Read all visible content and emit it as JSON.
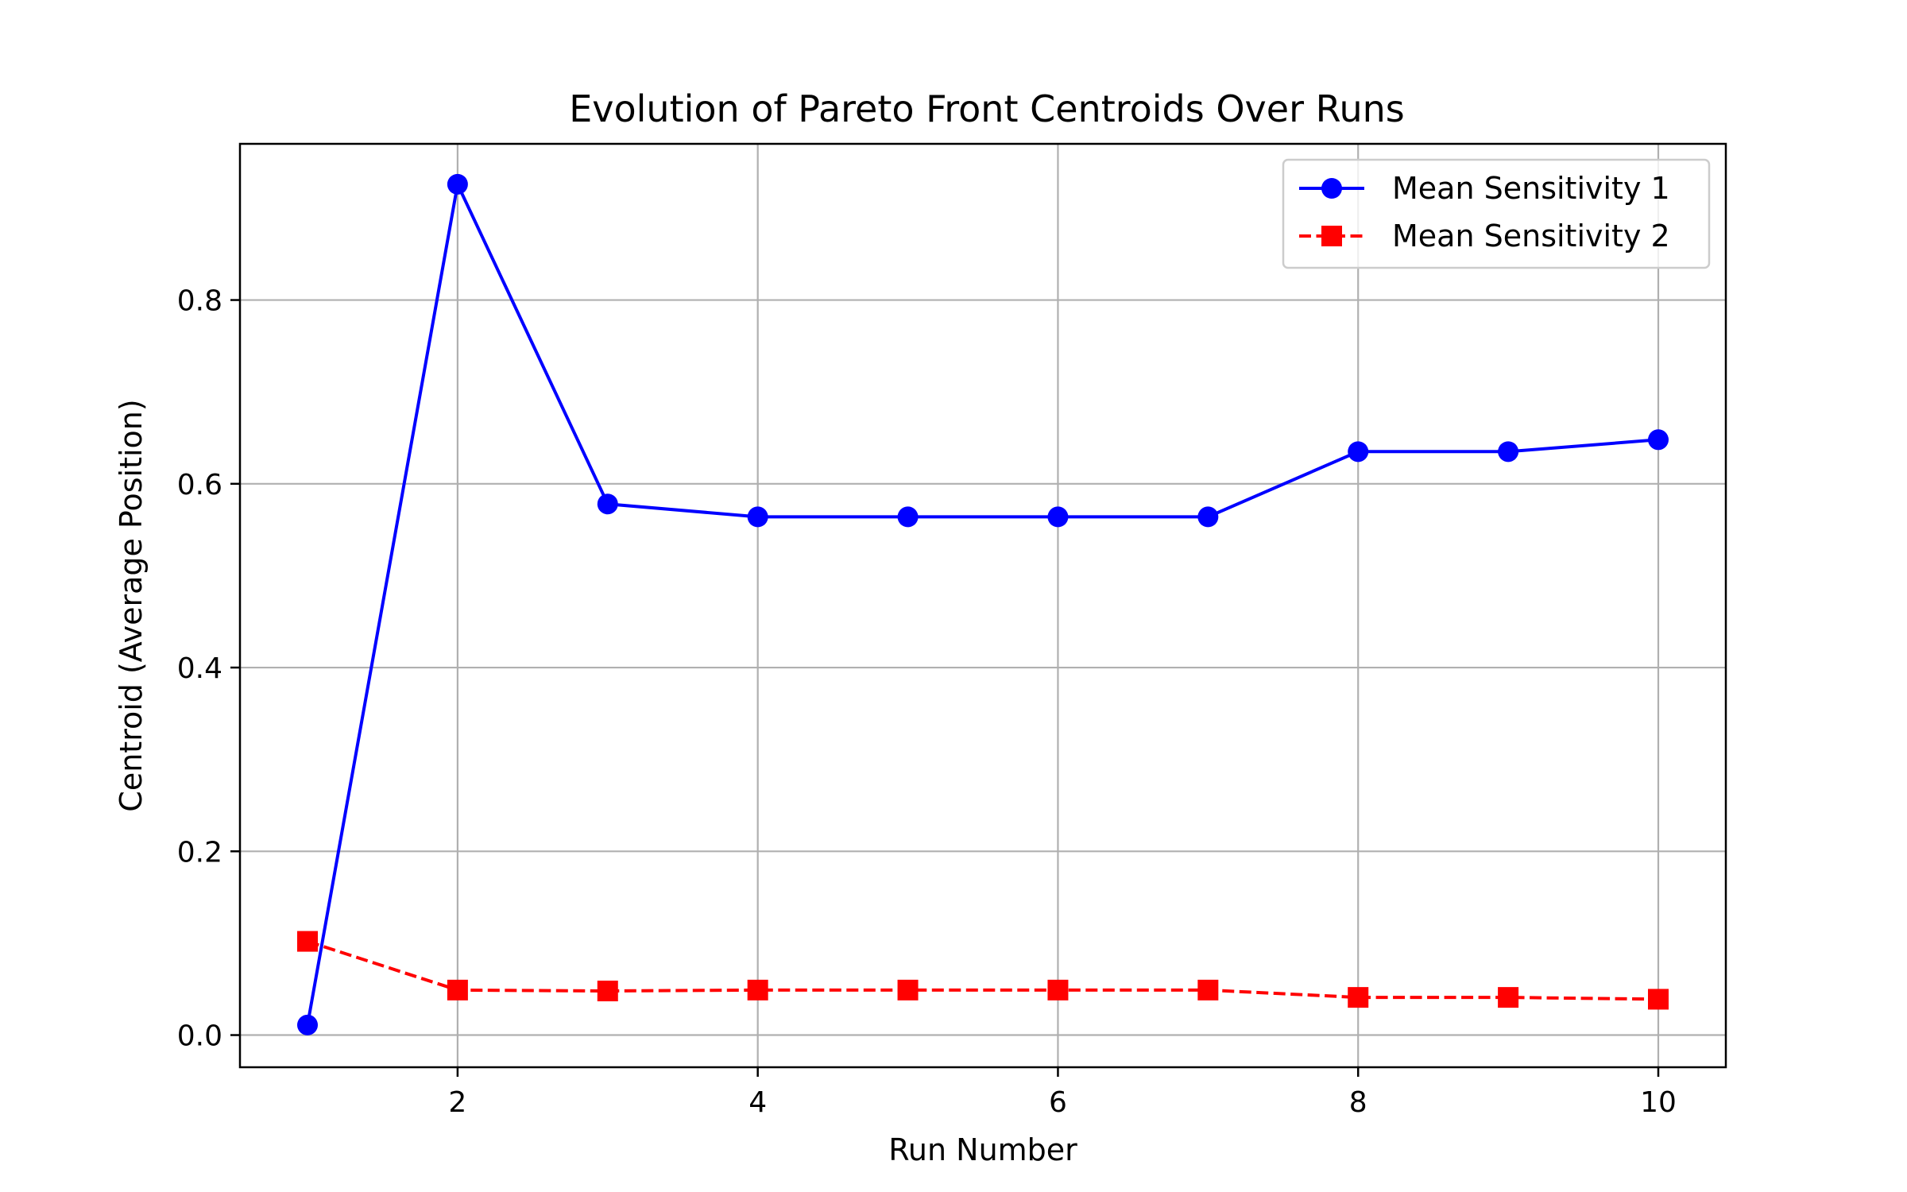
{
  "chart_data": {
    "type": "line",
    "title": "Evolution of Pareto Front Centroids Over Runs",
    "xlabel": "Run Number",
    "ylabel": "Centroid (Average Position)",
    "xlim": [
      0.55,
      10.45
    ],
    "ylim": [
      -0.035,
      0.97
    ],
    "xticks": [
      2,
      4,
      6,
      8,
      10
    ],
    "yticks": [
      0.0,
      0.2,
      0.4,
      0.6,
      0.8
    ],
    "xtick_labels": [
      "2",
      "4",
      "6",
      "8",
      "10"
    ],
    "ytick_labels": [
      "0.0",
      "0.2",
      "0.4",
      "0.6",
      "0.8"
    ],
    "grid": true,
    "legend_position": "top-right",
    "x": [
      1,
      2,
      3,
      4,
      5,
      6,
      7,
      8,
      9,
      10
    ],
    "series": [
      {
        "name": "Mean Sensitivity 1",
        "values": [
          0.011,
          0.926,
          0.578,
          0.564,
          0.564,
          0.564,
          0.564,
          0.635,
          0.635,
          0.648
        ],
        "color": "#0000ff",
        "line_style": "solid",
        "marker": "circle"
      },
      {
        "name": "Mean Sensitivity 2",
        "values": [
          0.102,
          0.049,
          0.048,
          0.049,
          0.049,
          0.049,
          0.049,
          0.041,
          0.041,
          0.039
        ],
        "color": "#ff0000",
        "line_style": "dashed",
        "marker": "square"
      }
    ]
  }
}
